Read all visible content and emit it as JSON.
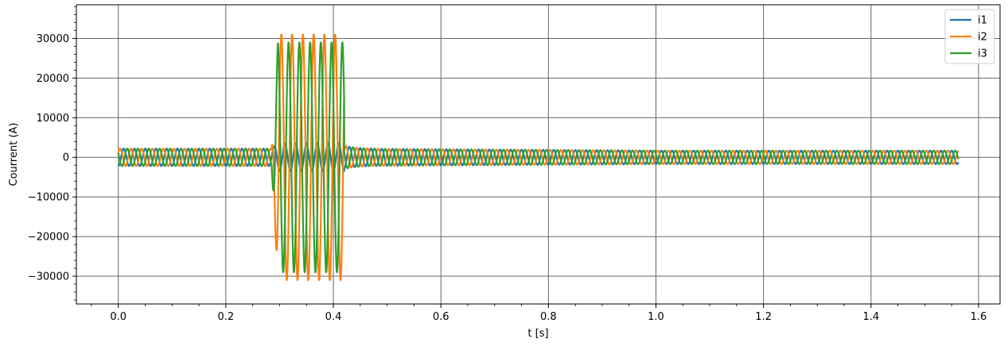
{
  "chart_data": {
    "type": "line",
    "xlabel": "t [s]",
    "ylabel": "Courrent (A)",
    "xlim": [
      -0.078,
      1.64
    ],
    "ylim": [
      -37000,
      38500
    ],
    "x_ticks": [
      0.0,
      0.2,
      0.4,
      0.6,
      0.8,
      1.0,
      1.2,
      1.4,
      1.6
    ],
    "x_tick_labels": [
      "0.0",
      "0.2",
      "0.4",
      "0.6",
      "0.8",
      "1.0",
      "1.2",
      "1.4",
      "1.6"
    ],
    "y_ticks": [
      -30000,
      -20000,
      -10000,
      0,
      10000,
      20000,
      30000
    ],
    "y_tick_labels": [
      "−30000",
      "−20000",
      "−10000",
      "0",
      "10000",
      "20000",
      "30000"
    ],
    "grid": true,
    "minor_ticks": true,
    "legend_position": "top-right",
    "t_end": 1.5625,
    "frequency_hz": 50,
    "fault_window": [
      0.285,
      0.42
    ],
    "series": [
      {
        "name": "i1",
        "color": "#1f77b4",
        "prefault_amplitude": 2200,
        "fault_amplitude": 3500,
        "postfault_amplitude": 1700,
        "phase_deg": -90
      },
      {
        "name": "i2",
        "color": "#ff7f0e",
        "prefault_amplitude": 2200,
        "fault_amplitude": 31000,
        "postfault_amplitude": 1700,
        "phase_deg": 30
      },
      {
        "name": "i3",
        "color": "#2ca02c",
        "prefault_amplitude": 2200,
        "fault_amplitude": 29000,
        "postfault_amplitude": 1700,
        "phase_deg": 150
      }
    ]
  }
}
